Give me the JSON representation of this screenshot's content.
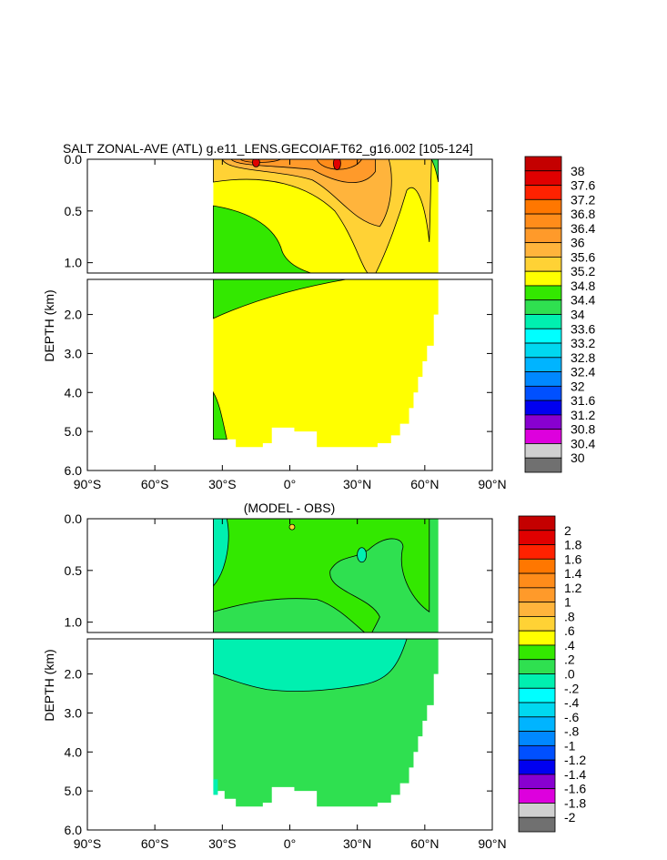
{
  "chart_data": [
    {
      "type": "contour",
      "title": "SALT ZONAL-AVE (ATL) g.e11_LENS.GECOIAF.T62_g16.002 [105-124]",
      "xlabel": "",
      "ylabel": "DEPTH (km)",
      "x_ticks": [
        "90°S",
        "60°S",
        "30°S",
        "0°",
        "30°N",
        "60°N",
        "90°N"
      ],
      "xlim": [
        -90,
        90
      ],
      "y_ticks_upper": [
        "0.0",
        "0.5",
        "1.0"
      ],
      "y_ticks_lower": [
        "2.0",
        "3.0",
        "4.0",
        "5.0",
        "6.0"
      ],
      "ylim_upper": [
        0,
        1.1
      ],
      "ylim_lower": [
        1.1,
        6.0
      ],
      "colorbar_labels": [
        "38",
        "37.6",
        "37.2",
        "36.8",
        "36.4",
        "36",
        "35.6",
        "35.2",
        "34.8",
        "34.4",
        "34",
        "33.6",
        "33.2",
        "32.8",
        "32.4",
        "32",
        "31.6",
        "31.2",
        "30.8",
        "30.4",
        "30"
      ],
      "colorbar_colors": [
        "#c40000",
        "#e00000",
        "#ff2200",
        "#ff7700",
        "#ff8c1a",
        "#ff9a2a",
        "#ffb43c",
        "#ffd235",
        "#ffff00",
        "#33e800",
        "#2fe050",
        "#00f0b0",
        "#00ffff",
        "#00d8f0",
        "#00b4ff",
        "#0088ff",
        "#0050ff",
        "#0000f0",
        "#8800d0",
        "#dd00dd",
        "#d0d0d0",
        "#707070"
      ]
    },
    {
      "type": "contour",
      "title": "(MODEL - OBS)",
      "xlabel": "",
      "ylabel": "DEPTH (km)",
      "x_ticks": [
        "90°S",
        "60°S",
        "30°S",
        "0°",
        "30°N",
        "60°N",
        "90°N"
      ],
      "xlim": [
        -90,
        90
      ],
      "y_ticks_upper": [
        "0.0",
        "0.5",
        "1.0"
      ],
      "y_ticks_lower": [
        "2.0",
        "3.0",
        "4.0",
        "5.0",
        "6.0"
      ],
      "ylim_upper": [
        0,
        1.1
      ],
      "ylim_lower": [
        1.1,
        6.0
      ],
      "colorbar_labels": [
        "2",
        "1.8",
        "1.6",
        "1.4",
        "1.2",
        "1",
        ".8",
        ".6",
        ".4",
        ".2",
        ".0",
        "-.2",
        "-.4",
        "-.6",
        "-.8",
        "-1",
        "-1.2",
        "-1.4",
        "-1.6",
        "-1.8",
        "-2"
      ],
      "colorbar_colors": [
        "#c40000",
        "#e00000",
        "#ff2200",
        "#ff7700",
        "#ff8c1a",
        "#ff9a2a",
        "#ffb43c",
        "#ffd235",
        "#ffff00",
        "#33e800",
        "#2fe050",
        "#00f0b0",
        "#00ffff",
        "#00d8f0",
        "#00b4ff",
        "#0088ff",
        "#0050ff",
        "#0000f0",
        "#8800d0",
        "#dd00dd",
        "#d0d0d0",
        "#707070"
      ]
    }
  ]
}
